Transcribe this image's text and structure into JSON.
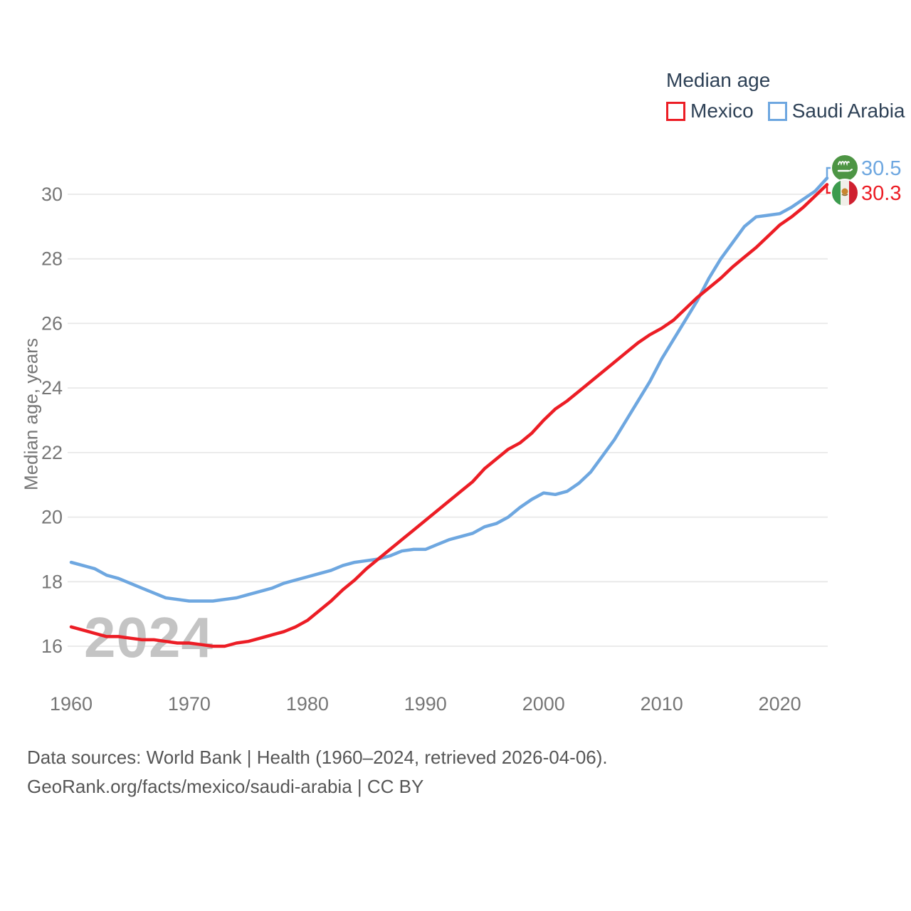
{
  "legend": {
    "title": "Median age",
    "items": [
      {
        "label": "Mexico",
        "color": "#ec1d25"
      },
      {
        "label": "Saudi Arabia",
        "color": "#6ea7e0"
      }
    ]
  },
  "axis": {
    "y_label": "Median age, years"
  },
  "watermark": "2024",
  "end_labels": [
    {
      "series": "Saudi Arabia",
      "value": "30.5",
      "flag": "saudi-arabia-flag",
      "color": "#6ea7e0"
    },
    {
      "series": "Mexico",
      "value": "30.3",
      "flag": "mexico-flag",
      "color": "#ec1d25"
    }
  ],
  "footer": {
    "line1": "Data sources: World Bank | Health (1960–2024, retrieved 2026-04-06).",
    "line2": "GeoRank.org/facts/mexico/saudi-arabia | CC BY"
  },
  "colors": {
    "mexico_line": "#ec1d25",
    "saudi_line": "#6ea7e0",
    "grid": "#e8e8e8",
    "tick_text": "#767676",
    "legend_text": "#2e4156",
    "footer_text": "#565656",
    "watermark": "#c4c4c4",
    "saudi_flag_green": "#4d9544",
    "mexico_flag_green": "#3c9b4e",
    "mexico_flag_red": "#cf2030"
  },
  "chart_data": {
    "type": "line",
    "title": "Median age",
    "xlabel": "",
    "ylabel": "Median age, years",
    "xlim": [
      1960,
      2024
    ],
    "ylim": [
      15,
      31
    ],
    "grid": true,
    "legend_position": "top-right",
    "x_ticks": [
      1960,
      1970,
      1980,
      1990,
      2000,
      2010,
      2020
    ],
    "y_ticks": [
      16,
      18,
      20,
      22,
      24,
      26,
      28,
      30
    ],
    "x": [
      1960,
      1961,
      1962,
      1963,
      1964,
      1965,
      1966,
      1967,
      1968,
      1969,
      1970,
      1971,
      1972,
      1973,
      1974,
      1975,
      1976,
      1977,
      1978,
      1979,
      1980,
      1981,
      1982,
      1983,
      1984,
      1985,
      1986,
      1987,
      1988,
      1989,
      1990,
      1991,
      1992,
      1993,
      1994,
      1995,
      1996,
      1997,
      1998,
      1999,
      2000,
      2001,
      2002,
      2003,
      2004,
      2005,
      2006,
      2007,
      2008,
      2009,
      2010,
      2011,
      2012,
      2013,
      2014,
      2015,
      2016,
      2017,
      2018,
      2019,
      2020,
      2021,
      2022,
      2023,
      2024
    ],
    "series": [
      {
        "id": "saudi-arabia",
        "name": "Saudi Arabia",
        "color": "#6ea7e0",
        "end_value": 30.5,
        "values": [
          18.6,
          18.5,
          18.4,
          18.2,
          18.1,
          17.95,
          17.8,
          17.65,
          17.5,
          17.45,
          17.4,
          17.4,
          17.4,
          17.45,
          17.5,
          17.6,
          17.7,
          17.8,
          17.95,
          18.05,
          18.15,
          18.25,
          18.35,
          18.5,
          18.6,
          18.65,
          18.7,
          18.8,
          18.95,
          19.0,
          19.0,
          19.15,
          19.3,
          19.4,
          19.5,
          19.7,
          19.8,
          20.0,
          20.3,
          20.55,
          20.75,
          20.7,
          20.8,
          21.05,
          21.4,
          21.9,
          22.4,
          23.0,
          23.6,
          24.2,
          24.9,
          25.5,
          26.1,
          26.7,
          27.4,
          28.0,
          28.5,
          29.0,
          29.3,
          29.35,
          29.4,
          29.6,
          29.85,
          30.1,
          30.5
        ]
      },
      {
        "id": "mexico",
        "name": "Mexico",
        "color": "#ec1d25",
        "end_value": 30.3,
        "values": [
          16.6,
          16.5,
          16.4,
          16.3,
          16.3,
          16.25,
          16.2,
          16.2,
          16.15,
          16.1,
          16.1,
          16.05,
          16.0,
          16.0,
          16.1,
          16.15,
          16.25,
          16.35,
          16.45,
          16.6,
          16.8,
          17.1,
          17.4,
          17.75,
          18.05,
          18.4,
          18.7,
          19.0,
          19.3,
          19.6,
          19.9,
          20.2,
          20.5,
          20.8,
          21.1,
          21.5,
          21.8,
          22.1,
          22.3,
          22.6,
          23.0,
          23.35,
          23.6,
          23.9,
          24.2,
          24.5,
          24.8,
          25.1,
          25.4,
          25.65,
          25.85,
          26.1,
          26.45,
          26.8,
          27.1,
          27.4,
          27.75,
          28.05,
          28.35,
          28.7,
          29.05,
          29.3,
          29.6,
          29.95,
          30.3
        ]
      }
    ]
  }
}
